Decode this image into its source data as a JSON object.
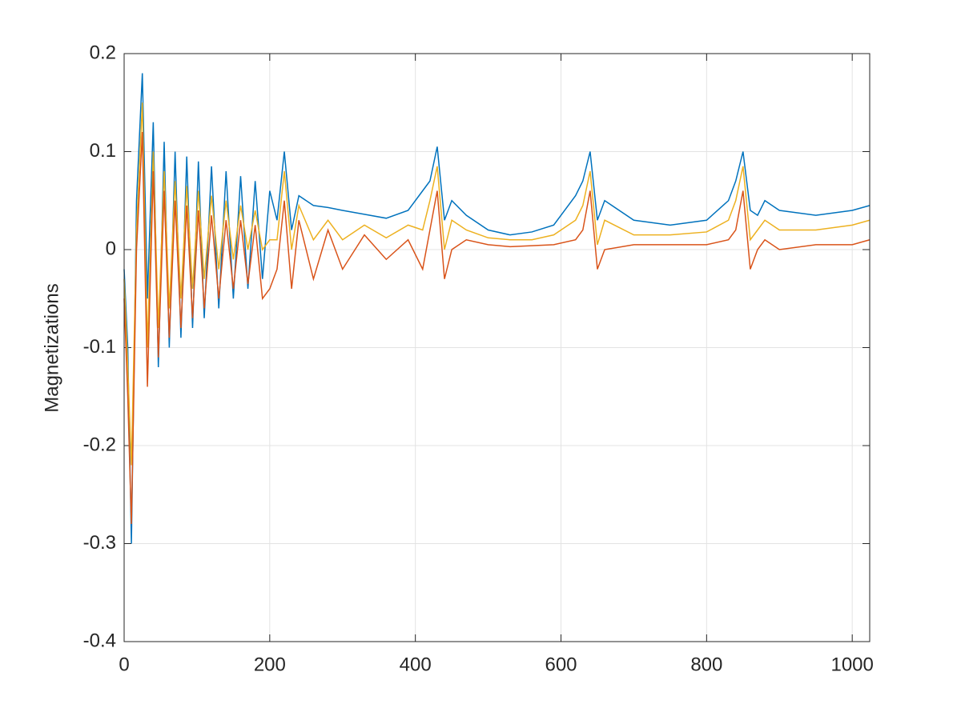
{
  "chart_data": {
    "type": "line",
    "ylabel": "Magnetizations",
    "x": [
      0,
      5,
      10,
      17,
      25,
      32,
      40,
      47,
      55,
      62,
      70,
      78,
      86,
      94,
      102,
      110,
      120,
      130,
      140,
      150,
      160,
      170,
      180,
      190,
      200,
      210,
      220,
      230,
      240,
      260,
      280,
      300,
      330,
      360,
      390,
      410,
      420,
      430,
      440,
      450,
      470,
      500,
      530,
      560,
      590,
      620,
      630,
      640,
      650,
      660,
      700,
      750,
      800,
      830,
      840,
      850,
      860,
      870,
      880,
      900,
      950,
      1000,
      1024
    ],
    "series": [
      {
        "color": "#0072BD",
        "values": [
          -0.02,
          -0.1,
          -0.3,
          0.05,
          0.18,
          -0.05,
          0.13,
          -0.12,
          0.11,
          -0.1,
          0.1,
          -0.09,
          0.095,
          -0.08,
          0.09,
          -0.07,
          0.085,
          -0.06,
          0.08,
          -0.05,
          0.075,
          -0.04,
          0.07,
          -0.03,
          0.06,
          0.03,
          0.1,
          0.02,
          0.055,
          0.045,
          0.043,
          0.04,
          0.036,
          0.032,
          0.04,
          0.06,
          0.07,
          0.105,
          0.03,
          0.05,
          0.035,
          0.02,
          0.015,
          0.018,
          0.025,
          0.055,
          0.07,
          0.1,
          0.03,
          0.05,
          0.03,
          0.025,
          0.03,
          0.05,
          0.07,
          0.1,
          0.04,
          0.035,
          0.05,
          0.04,
          0.035,
          0.04,
          0.045
        ]
      },
      {
        "color": "#EDB120",
        "values": [
          -0.03,
          -0.12,
          -0.22,
          0.02,
          0.15,
          -0.1,
          0.1,
          -0.08,
          0.08,
          -0.06,
          0.07,
          -0.05,
          0.065,
          -0.04,
          0.06,
          -0.03,
          0.055,
          -0.02,
          0.05,
          -0.01,
          0.045,
          0.0,
          0.04,
          0.0,
          0.01,
          0.01,
          0.08,
          0.0,
          0.045,
          0.01,
          0.03,
          0.01,
          0.025,
          0.012,
          0.025,
          0.02,
          0.05,
          0.085,
          0.0,
          0.03,
          0.02,
          0.012,
          0.01,
          0.01,
          0.015,
          0.03,
          0.045,
          0.08,
          0.005,
          0.03,
          0.015,
          0.015,
          0.018,
          0.03,
          0.05,
          0.085,
          0.01,
          0.02,
          0.03,
          0.02,
          0.02,
          0.025,
          0.03
        ]
      },
      {
        "color": "#D95319",
        "values": [
          -0.05,
          -0.15,
          -0.28,
          0.0,
          0.12,
          -0.14,
          0.08,
          -0.11,
          0.06,
          -0.09,
          0.05,
          -0.08,
          0.045,
          -0.07,
          0.04,
          -0.06,
          0.035,
          -0.05,
          0.03,
          -0.04,
          0.03,
          -0.035,
          0.025,
          -0.05,
          -0.04,
          -0.02,
          0.05,
          -0.04,
          0.03,
          -0.03,
          0.02,
          -0.02,
          0.015,
          -0.01,
          0.01,
          -0.02,
          0.02,
          0.06,
          -0.03,
          0.0,
          0.01,
          0.005,
          0.003,
          0.004,
          0.005,
          0.01,
          0.02,
          0.06,
          -0.02,
          0.0,
          0.005,
          0.005,
          0.005,
          0.01,
          0.02,
          0.06,
          -0.02,
          0.0,
          0.01,
          0.0,
          0.005,
          0.005,
          0.01
        ]
      }
    ],
    "xlim": [
      0,
      1024
    ],
    "xticks": [
      0,
      200,
      400,
      600,
      800,
      1000
    ],
    "ylim": [
      -0.4,
      0.2
    ],
    "yticks": [
      -0.4,
      -0.3,
      -0.2,
      -0.1,
      0,
      0.1,
      0.2
    ],
    "grid": true
  }
}
